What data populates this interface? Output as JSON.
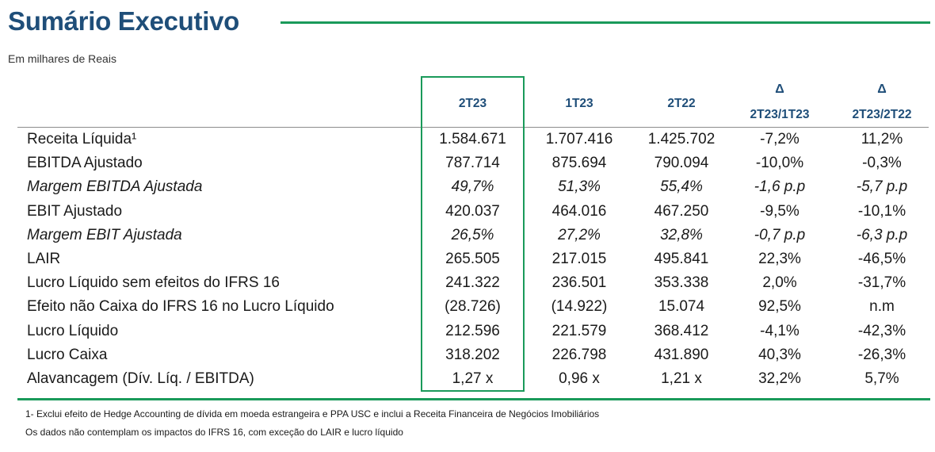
{
  "title": "Sumário Executivo",
  "subtitle": "Em milhares de Reais",
  "colors": {
    "title": "#1f4e79",
    "accent": "#1a9a5a"
  },
  "columns": [
    {
      "label": "2T23",
      "delta": ""
    },
    {
      "label": "1T23",
      "delta": ""
    },
    {
      "label": "2T22",
      "delta": ""
    },
    {
      "label": "2T23/1T23",
      "delta": "Δ"
    },
    {
      "label": "2T23/2T22",
      "delta": "Δ"
    }
  ],
  "rows": [
    {
      "label": "Receita Líquida¹",
      "italic": false,
      "values": [
        "1.584.671",
        "1.707.416",
        "1.425.702",
        "-7,2%",
        "11,2%"
      ]
    },
    {
      "label": "EBITDA Ajustado",
      "italic": false,
      "values": [
        "787.714",
        "875.694",
        "790.094",
        "-10,0%",
        "-0,3%"
      ]
    },
    {
      "label": "Margem EBITDA Ajustada",
      "italic": true,
      "values": [
        "49,7%",
        "51,3%",
        "55,4%",
        "-1,6 p.p",
        "-5,7 p.p"
      ]
    },
    {
      "label": "EBIT Ajustado",
      "italic": false,
      "values": [
        "420.037",
        "464.016",
        "467.250",
        "-9,5%",
        "-10,1%"
      ]
    },
    {
      "label": "Margem EBIT Ajustada",
      "italic": true,
      "values": [
        "26,5%",
        "27,2%",
        "32,8%",
        "-0,7 p.p",
        "-6,3 p.p"
      ]
    },
    {
      "label": "LAIR",
      "italic": false,
      "values": [
        "265.505",
        "217.015",
        "495.841",
        "22,3%",
        "-46,5%"
      ]
    },
    {
      "label": "Lucro Líquido sem efeitos do IFRS 16",
      "italic": false,
      "values": [
        "241.322",
        "236.501",
        "353.338",
        "2,0%",
        "-31,7%"
      ]
    },
    {
      "label": "Efeito não Caixa do IFRS 16 no Lucro Líquido",
      "italic": false,
      "values": [
        "(28.726)",
        "(14.922)",
        "15.074",
        "92,5%",
        "n.m"
      ]
    },
    {
      "label": "Lucro Líquido",
      "italic": false,
      "values": [
        "212.596",
        "221.579",
        "368.412",
        "-4,1%",
        "-42,3%"
      ]
    },
    {
      "label": "Lucro Caixa",
      "italic": false,
      "values": [
        "318.202",
        "226.798",
        "431.890",
        "40,3%",
        "-26,3%"
      ]
    },
    {
      "label": "Alavancagem (Dív. Líq. / EBITDA)",
      "italic": false,
      "values": [
        "1,27 x",
        "0,96 x",
        "1,21 x",
        "32,2%",
        "5,7%"
      ]
    }
  ],
  "footnotes": [
    "1- Exclui efeito de Hedge Accounting de dívida em moeda estrangeira e PPA USC e inclui a Receita Financeira de Negócios Imobiliários",
    "Os dados não contemplam os impactos do IFRS 16, com exceção do LAIR e lucro líquido"
  ]
}
